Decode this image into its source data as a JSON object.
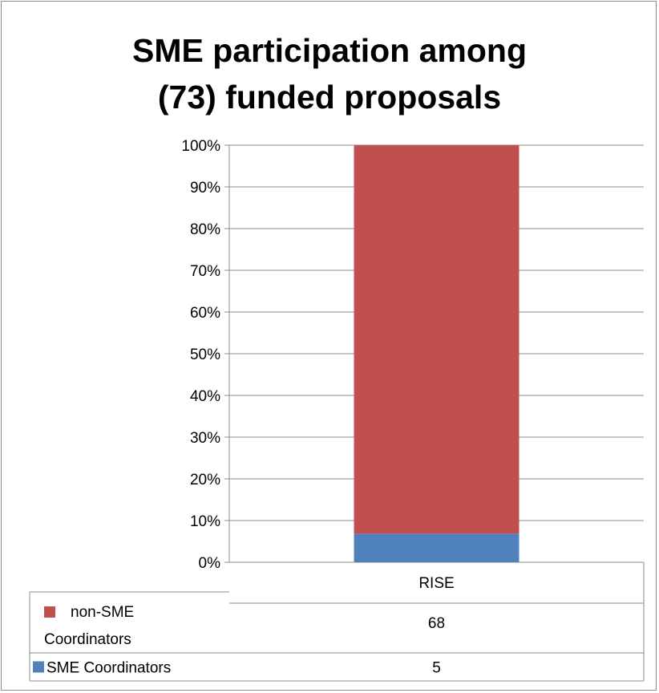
{
  "chart_data": {
    "type": "bar",
    "stacked": "percent",
    "title_lines": [
      "SME participation among",
      "(73) funded proposals"
    ],
    "categories": [
      "RISE"
    ],
    "y_ticks": [
      "0%",
      "10%",
      "20%",
      "30%",
      "40%",
      "50%",
      "60%",
      "70%",
      "80%",
      "90%",
      "100%"
    ],
    "ylim": [
      0,
      100
    ],
    "grid": true,
    "legend": "data-table",
    "series": [
      {
        "name": "SME Coordinators",
        "values": [
          5
        ],
        "color": "#4f81bd"
      },
      {
        "name": "non-SME Coordinators",
        "values": [
          68
        ],
        "color": "#c0504d"
      }
    ],
    "table": {
      "rows": [
        {
          "label_lines": [
            "non-SME",
            "Coordinators"
          ],
          "value": "68",
          "color": "#c0504d"
        },
        {
          "label_lines": [
            "SME Coordinators"
          ],
          "value": "5",
          "color": "#4f81bd"
        }
      ]
    }
  }
}
